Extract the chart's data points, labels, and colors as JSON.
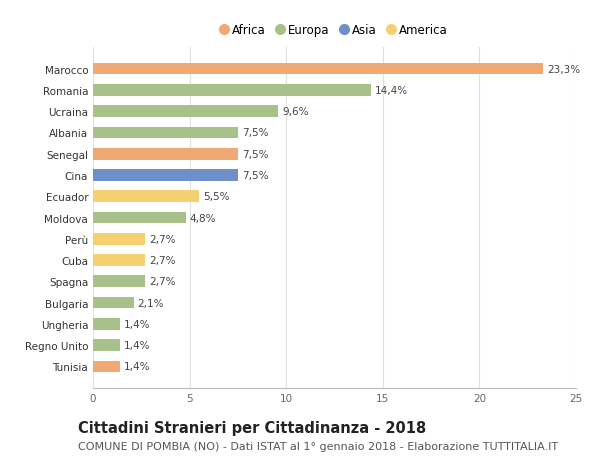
{
  "countries": [
    "Tunisia",
    "Regno Unito",
    "Ungheria",
    "Bulgaria",
    "Spagna",
    "Cuba",
    "Perù",
    "Moldova",
    "Ecuador",
    "Cina",
    "Senegal",
    "Albania",
    "Ucraina",
    "Romania",
    "Marocco"
  ],
  "values": [
    1.4,
    1.4,
    1.4,
    2.1,
    2.7,
    2.7,
    2.7,
    4.8,
    5.5,
    7.5,
    7.5,
    7.5,
    9.6,
    14.4,
    23.3
  ],
  "labels": [
    "1,4%",
    "1,4%",
    "1,4%",
    "2,1%",
    "2,7%",
    "2,7%",
    "2,7%",
    "4,8%",
    "5,5%",
    "7,5%",
    "7,5%",
    "7,5%",
    "9,6%",
    "14,4%",
    "23,3%"
  ],
  "continents": [
    "Africa",
    "Europa",
    "Europa",
    "Europa",
    "Europa",
    "America",
    "America",
    "Europa",
    "America",
    "Asia",
    "Africa",
    "Europa",
    "Europa",
    "Europa",
    "Africa"
  ],
  "colors": {
    "Africa": "#F0A875",
    "Europa": "#A8C08A",
    "Asia": "#6E8FC9",
    "America": "#F5D070"
  },
  "legend_order": [
    "Africa",
    "Europa",
    "Asia",
    "America"
  ],
  "title": "Cittadini Stranieri per Cittadinanza - 2018",
  "subtitle": "COMUNE DI POMBIA (NO) - Dati ISTAT al 1° gennaio 2018 - Elaborazione TUTTITALIA.IT",
  "xlim": [
    0,
    25
  ],
  "xticks": [
    0,
    5,
    10,
    15,
    20,
    25
  ],
  "background_color": "#ffffff",
  "grid_color": "#e0e0e0",
  "title_fontsize": 10.5,
  "subtitle_fontsize": 8,
  "label_fontsize": 7.5,
  "ytick_fontsize": 7.5,
  "xtick_fontsize": 7.5,
  "bar_height": 0.55
}
